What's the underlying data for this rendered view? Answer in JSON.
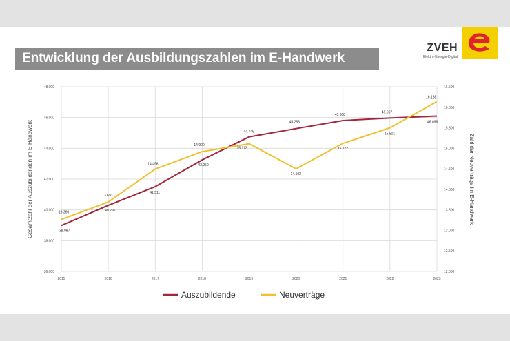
{
  "header": {
    "title": "Entwicklung der Ausbildungszahlen im E-Handwerk",
    "logo_name": "ZVEH",
    "logo_tagline": "Elektro·Energie·Digital"
  },
  "colors": {
    "auszubildende": "#a0263a",
    "neuvertraege": "#f0c030",
    "grid": "#d9d9d9",
    "logo_bg": "#f5d000",
    "logo_mark": "#e0212e"
  },
  "chart_data": {
    "type": "line",
    "x": [
      "2015",
      "2016",
      "2017",
      "2018",
      "2019",
      "2020",
      "2021",
      "2022",
      "2023"
    ],
    "ylabel": "Gesamtzahl der Auszubildenden im E-Handwerk",
    "y2label": "Zahl der Neuverträge im E-Handwerk",
    "ylim": [
      36000,
      48000
    ],
    "y2lim": [
      12000,
      16500
    ],
    "yticks": [
      "36.000",
      "38.000",
      "40.000",
      "42.000",
      "44.000",
      "46.000",
      "48.000"
    ],
    "y2ticks": [
      "12.000",
      "12.500",
      "13.000",
      "13.500",
      "14.000",
      "14.500",
      "15.000",
      "15.500",
      "16.000",
      "16.500"
    ],
    "grid": true,
    "legend_position": "bottom",
    "series": [
      {
        "name": "Auszubildende",
        "axis": "left",
        "values": [
          38987,
          40296,
          41511,
          43250,
          44746,
          45283,
          45808,
          45967,
          46096
        ],
        "labels": [
          "38.987",
          "40.296",
          "41.511",
          "43.250",
          "44.746",
          "45.283",
          "45.808",
          "45.967",
          "46.096"
        ]
      },
      {
        "name": "Neuverträge",
        "axis": "right",
        "values": [
          13266,
          13693,
          14496,
          14920,
          15112,
          14502,
          15122,
          15501,
          16138
        ],
        "labels": [
          "13.266",
          "13.693",
          "14.496",
          "14.920",
          "15.112",
          "14.502",
          "15.122",
          "15.501",
          "16.138"
        ]
      }
    ]
  }
}
